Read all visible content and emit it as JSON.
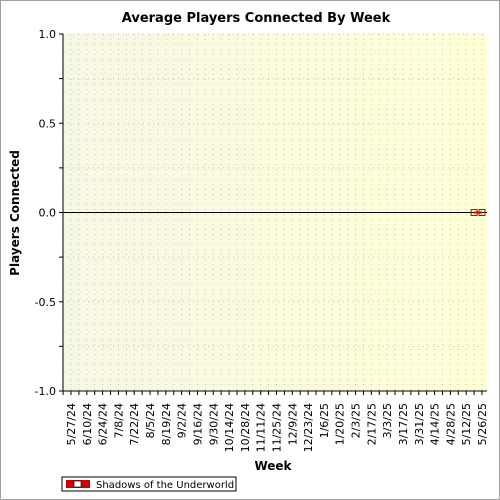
{
  "chart_data": {
    "type": "line",
    "title": "Average Players Connected By Week",
    "xlabel": "Week",
    "ylabel": "Players Connected",
    "ylim": [
      -1.0,
      1.0
    ],
    "yticks": [
      "1.0",
      "0.5",
      "0.0",
      "-0.5",
      "-1.0"
    ],
    "categories": [
      "5/27/24",
      "6/10/24",
      "6/24/24",
      "7/8/24",
      "7/22/24",
      "8/5/24",
      "8/19/24",
      "9/2/24",
      "9/16/24",
      "9/30/24",
      "10/14/24",
      "10/28/24",
      "11/11/24",
      "11/25/24",
      "12/9/24",
      "12/23/24",
      "1/6/25",
      "1/20/25",
      "2/3/25",
      "2/17/25",
      "3/3/25",
      "3/17/25",
      "3/31/25",
      "4/14/25",
      "4/28/25",
      "5/12/25",
      "5/26/25"
    ],
    "grid": true,
    "legend_position": "bottom-left",
    "series": [
      {
        "name": "Shadows of the Underworld",
        "color": "#cc0000",
        "points": [
          {
            "x": "5/19/25",
            "y": 0
          },
          {
            "x": "5/26/25",
            "y": 0
          }
        ]
      }
    ]
  }
}
